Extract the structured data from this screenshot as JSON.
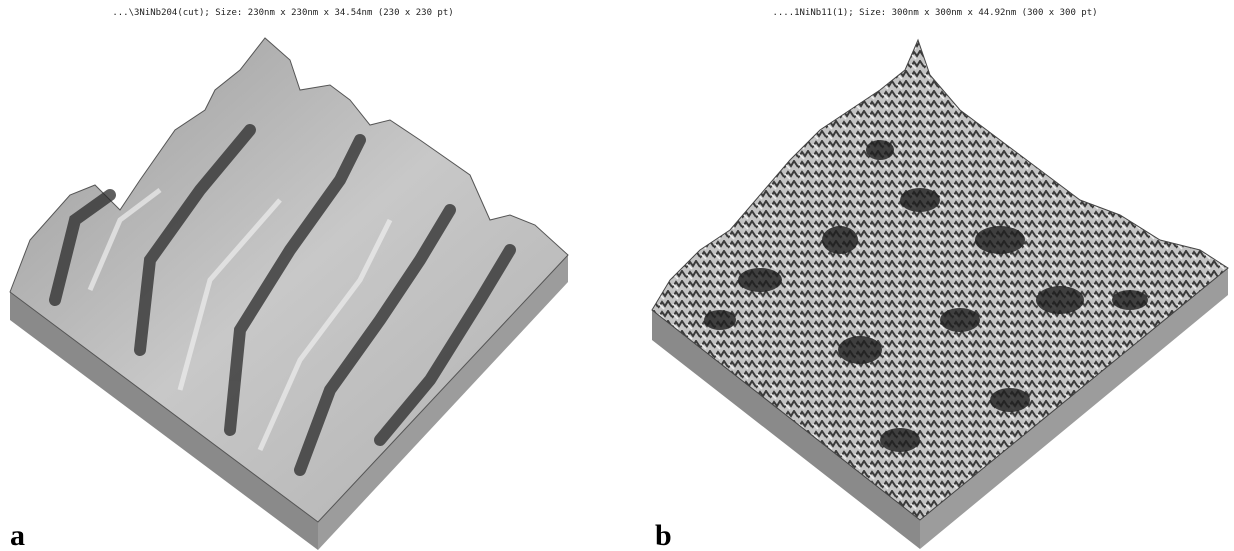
{
  "panels": [
    {
      "caption": "...\\3NiNb204(cut); Size: 230nm x 230nm x 34.54nm (230 x 230 pt)",
      "label": "a"
    },
    {
      "caption": "....1NiNb11(1); Size: 300nm x 300nm x 44.92nm (300 x 300 pt)",
      "label": "b"
    }
  ]
}
